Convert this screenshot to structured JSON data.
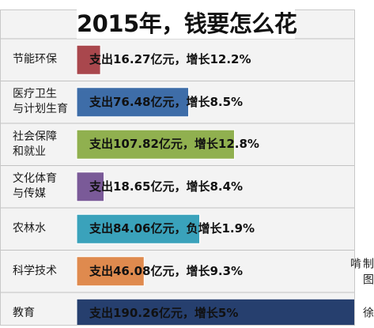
{
  "chart_data": {
    "type": "bar",
    "orientation": "horizontal",
    "title": "2015年，钱要怎么花",
    "categories": [
      "节能环保",
      "医疗卫生\n与计划生育",
      "社会保障\n和就业",
      "文化体育\n与传媒",
      "农林水",
      "科学技术",
      "教育"
    ],
    "values": [
      16.27,
      76.48,
      107.82,
      18.65,
      84.06,
      46.08,
      190.26
    ],
    "unit": "亿元",
    "data_labels": [
      "支出16.27亿元，增长12.2%",
      "支出76.48亿元，增长8.5%",
      "支出107.82亿元，增长12.8%",
      "支出18.65亿元，增长8.4%",
      "支出84.06亿元，负增长1.9%",
      "支出46.08亿元，增长9.3%",
      "支出190.26亿元，增长5%"
    ],
    "colors": [
      "#a9474d",
      "#3e6da8",
      "#90b04f",
      "#7a5a98",
      "#3aa2bb",
      "#df8a4e",
      "#263f6e"
    ],
    "xlim": [
      0,
      190.26
    ],
    "grid": true,
    "legend": "none"
  },
  "credit": "制图 徐啃"
}
